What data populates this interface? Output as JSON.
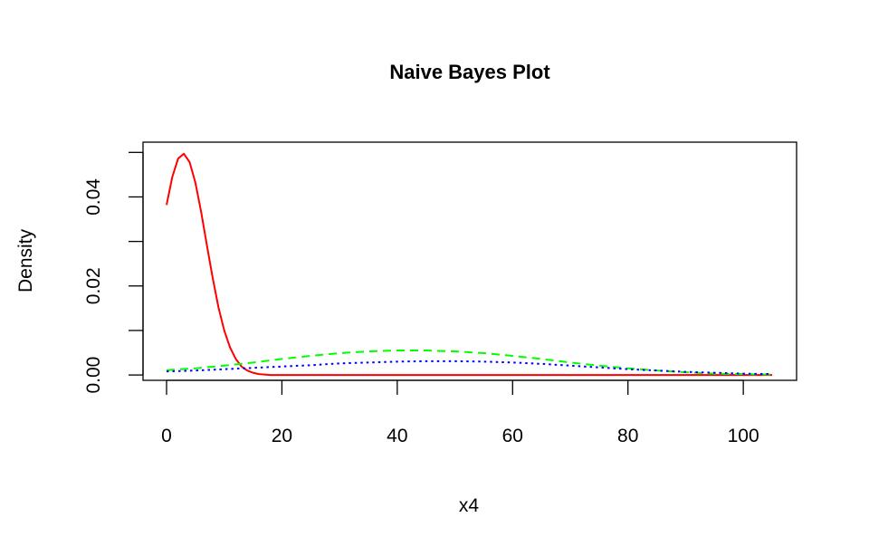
{
  "chart_data": {
    "type": "line",
    "title": "Naive Bayes Plot",
    "xlabel": "x4",
    "ylabel": "Density",
    "xlim": [
      0,
      105
    ],
    "ylim": [
      -0.0012,
      0.0523
    ],
    "xticks": [
      0,
      20,
      40,
      60,
      80,
      100
    ],
    "xtick_labels": [
      "0",
      "20",
      "40",
      "60",
      "80",
      "100"
    ],
    "yticks": [
      0.0,
      0.01,
      0.02,
      0.03,
      0.04,
      0.05
    ],
    "ytick_labels": [
      "0.00",
      "",
      "0.02",
      "",
      "0.04",
      ""
    ],
    "grid": false,
    "legend": "none",
    "series": [
      {
        "color": "#ff0000",
        "style": "solid",
        "points": [
          [
            0,
            0.0382
          ],
          [
            1,
            0.0445
          ],
          [
            2,
            0.0486
          ],
          [
            3,
            0.0497
          ],
          [
            4,
            0.0478
          ],
          [
            5,
            0.0432
          ],
          [
            6,
            0.0366
          ],
          [
            7,
            0.0291
          ],
          [
            8,
            0.0218
          ],
          [
            9,
            0.0152
          ],
          [
            10,
            0.01
          ],
          [
            11,
            0.0062
          ],
          [
            12,
            0.0036
          ],
          [
            13,
            0.0019
          ],
          [
            14,
            0.001
          ],
          [
            15,
            0.0005
          ],
          [
            16,
            0.0002
          ],
          [
            17,
            0.0001
          ],
          [
            18,
            0.0
          ],
          [
            20,
            0.0
          ],
          [
            105,
            0.0
          ]
        ]
      },
      {
        "color": "#00ff00",
        "style": "dashed",
        "points": [
          [
            0,
            0.0011
          ],
          [
            5,
            0.0015
          ],
          [
            10,
            0.0021
          ],
          [
            15,
            0.0028
          ],
          [
            20,
            0.0036
          ],
          [
            25,
            0.0043
          ],
          [
            30,
            0.0049
          ],
          [
            35,
            0.0053
          ],
          [
            40,
            0.0055
          ],
          [
            45,
            0.0055
          ],
          [
            50,
            0.0053
          ],
          [
            55,
            0.0049
          ],
          [
            60,
            0.0043
          ],
          [
            65,
            0.0036
          ],
          [
            70,
            0.0028
          ],
          [
            75,
            0.0021
          ],
          [
            80,
            0.0015
          ],
          [
            85,
            0.001
          ],
          [
            90,
            0.0006
          ],
          [
            95,
            0.0003
          ],
          [
            100,
            0.0002
          ],
          [
            105,
            0.0001
          ]
        ]
      },
      {
        "color": "#0000ff",
        "style": "dotted",
        "points": [
          [
            0,
            0.0008
          ],
          [
            5,
            0.001
          ],
          [
            10,
            0.0013
          ],
          [
            15,
            0.0016
          ],
          [
            20,
            0.0019
          ],
          [
            25,
            0.0022
          ],
          [
            30,
            0.0026
          ],
          [
            35,
            0.0028
          ],
          [
            40,
            0.003
          ],
          [
            45,
            0.0031
          ],
          [
            50,
            0.0031
          ],
          [
            55,
            0.003
          ],
          [
            60,
            0.0028
          ],
          [
            65,
            0.0025
          ],
          [
            70,
            0.0021
          ],
          [
            75,
            0.0017
          ],
          [
            80,
            0.0013
          ],
          [
            85,
            0.001
          ],
          [
            90,
            0.0007
          ],
          [
            95,
            0.0005
          ],
          [
            100,
            0.0003
          ],
          [
            105,
            0.0002
          ]
        ]
      }
    ]
  }
}
